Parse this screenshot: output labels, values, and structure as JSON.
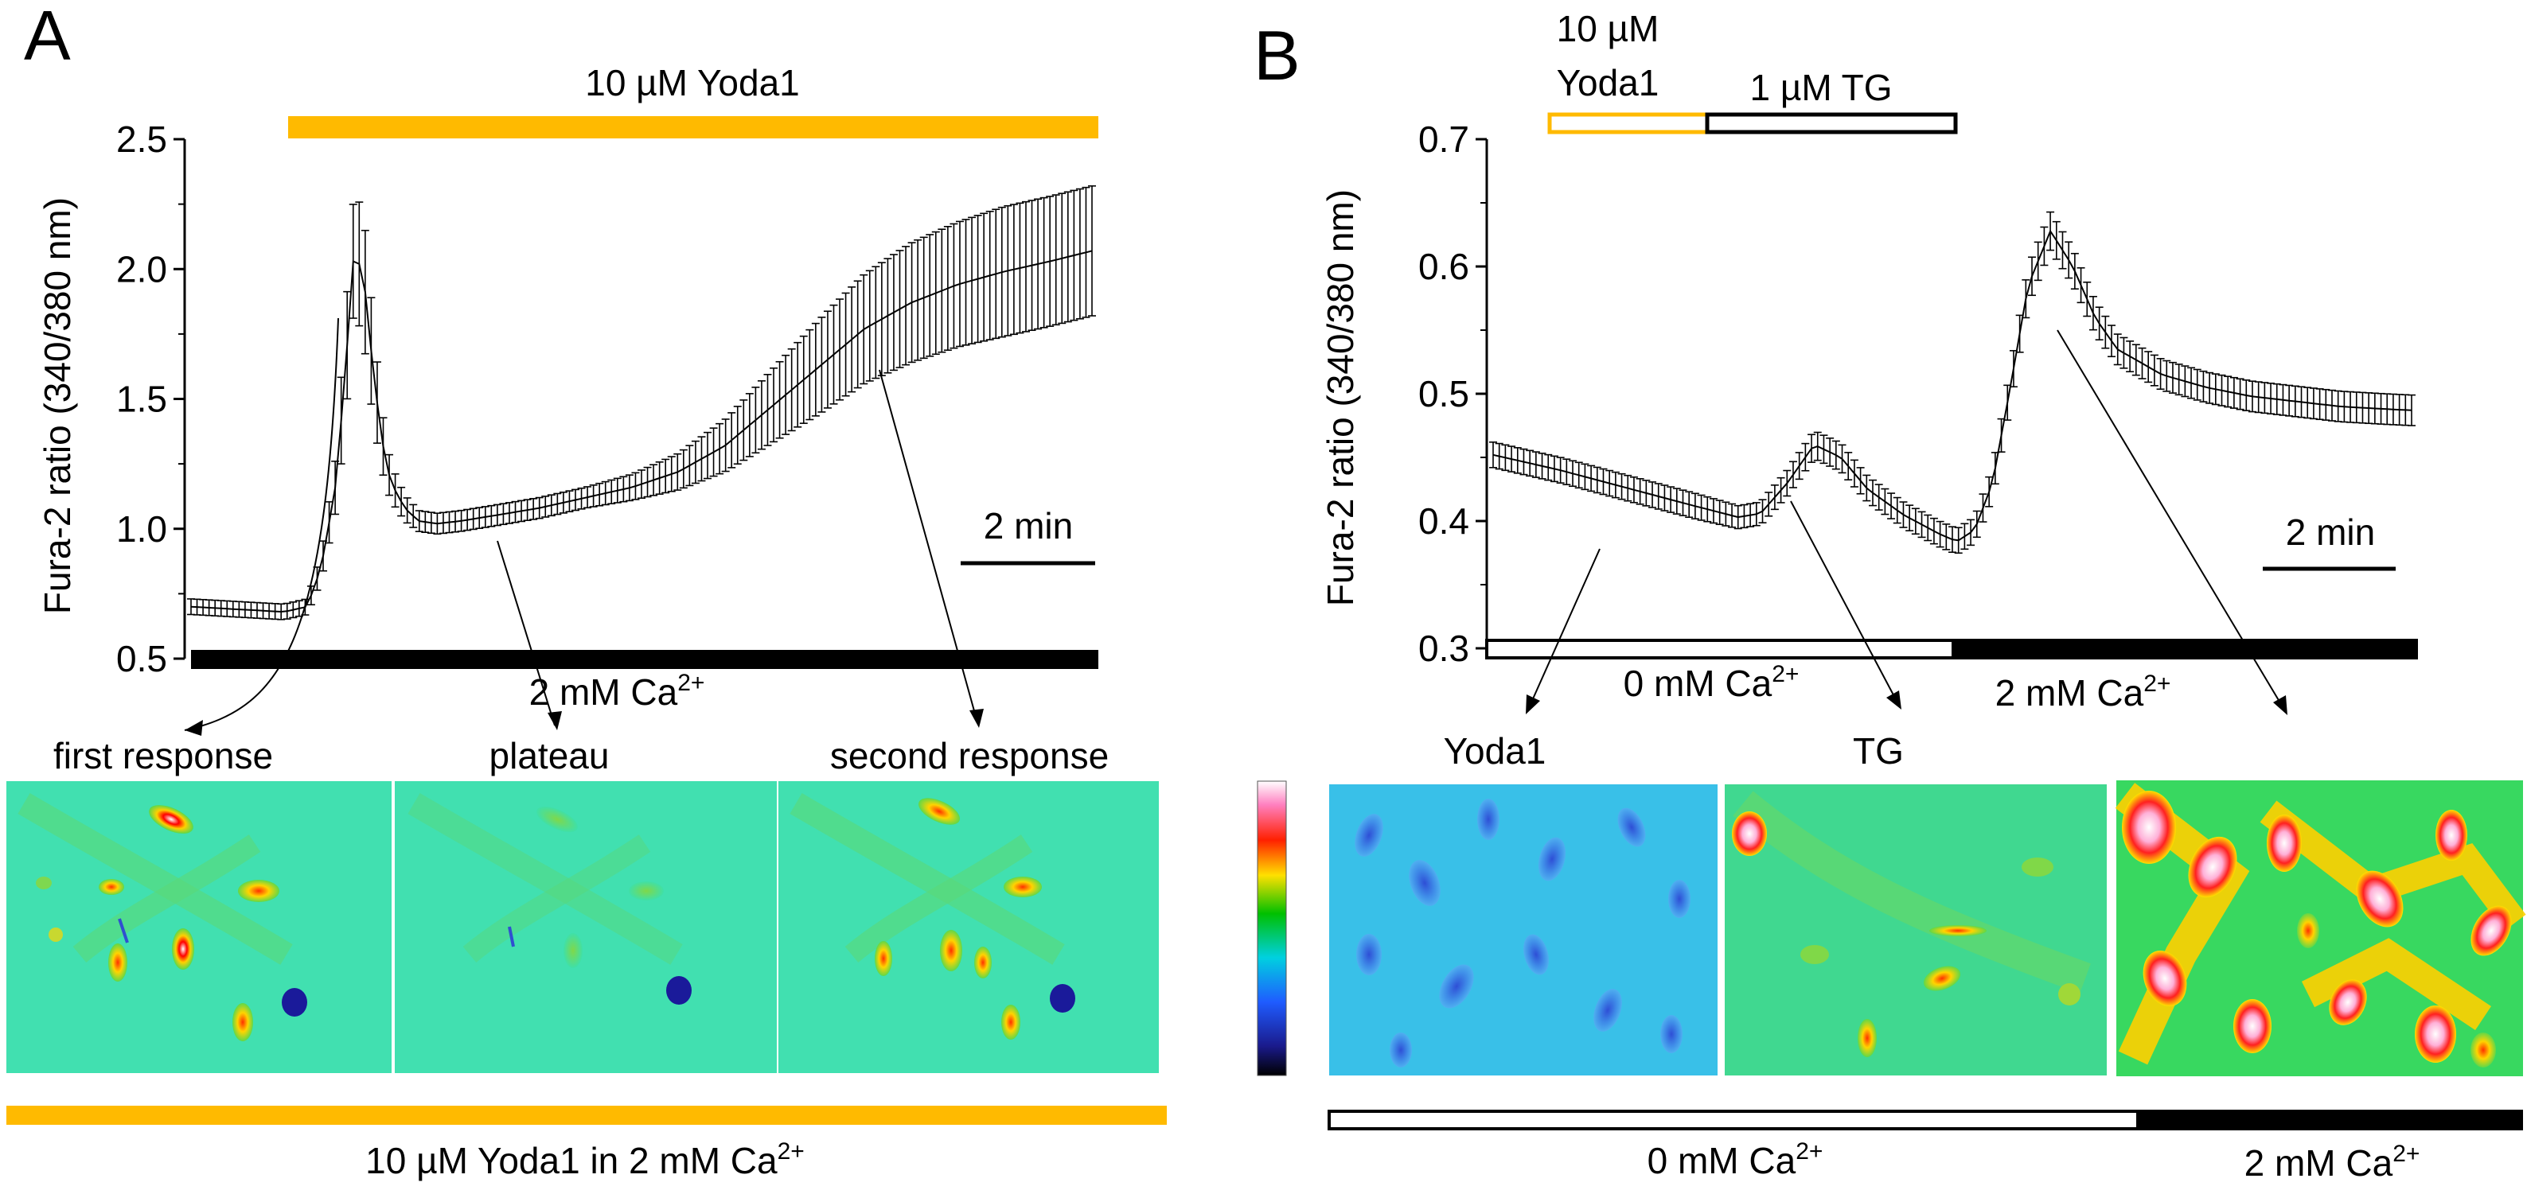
{
  "colors": {
    "yoda": "#FFBA00",
    "black": "#000000",
    "white": "#FFFFFF"
  },
  "panel_a": {
    "letter": "A",
    "top_bar_label": "10 µM Yoda1",
    "ca_bar_label_prefix": "2 mM Ca",
    "ca_sup": "2+",
    "scale_bar_label": "2 min",
    "callouts": [
      "first response",
      "plateau",
      "second response"
    ],
    "bottom_bar_label_prefix": "10 µM Yoda1 in 2 mM Ca",
    "bottom_bar_sup": "2+"
  },
  "panel_b": {
    "letter": "B",
    "yoda_label_line1": "10 µM",
    "yoda_label_line2": "Yoda1",
    "tg_label": "1 µM TG",
    "ca0_label_prefix": "0 mM Ca",
    "ca2_label_prefix": "2 mM Ca",
    "ca_sup": "2+",
    "scale_bar_label": "2 min",
    "callouts": [
      "Yoda1",
      "TG"
    ],
    "bottom_ca0_prefix": "0 mM Ca",
    "bottom_ca2_prefix": "2 mM Ca",
    "bottom_sup": "2+"
  },
  "chart_data": [
    {
      "type": "line",
      "panel": "A",
      "title": "",
      "xlabel": "",
      "ylabel": "Fura-2 ratio (340/380 nm)",
      "ylim": [
        0.5,
        2.5
      ],
      "yticks": [
        0.5,
        1.0,
        1.5,
        2.0,
        2.5
      ],
      "ytick_labels": [
        "0.5",
        "1.0",
        "1.5",
        "2.0",
        "2.5"
      ],
      "x_unit": "min",
      "xlim": [
        0,
        19.4
      ],
      "series": [
        {
          "name": "Fura-2 ratio",
          "x": [
            0,
            1.0,
            2.0,
            2.5,
            2.8,
            3.1,
            3.3,
            3.5,
            3.7,
            3.9,
            4.1,
            4.3,
            4.6,
            4.9,
            5.3,
            5.8,
            6.5,
            7.5,
            8.5,
            9.5,
            10.5,
            11.5,
            12.5,
            13.5,
            14.5,
            15.5,
            16.5,
            17.5,
            18.5,
            19.4
          ],
          "y": [
            0.7,
            0.69,
            0.68,
            0.7,
            0.85,
            1.15,
            1.55,
            2.05,
            2.0,
            1.65,
            1.35,
            1.18,
            1.08,
            1.03,
            1.02,
            1.03,
            1.05,
            1.08,
            1.12,
            1.16,
            1.22,
            1.32,
            1.47,
            1.62,
            1.77,
            1.87,
            1.94,
            1.99,
            2.03,
            2.07
          ],
          "err": [
            0.03,
            0.03,
            0.03,
            0.03,
            0.05,
            0.1,
            0.2,
            0.22,
            0.25,
            0.2,
            0.12,
            0.07,
            0.05,
            0.04,
            0.04,
            0.04,
            0.04,
            0.04,
            0.04,
            0.05,
            0.07,
            0.1,
            0.14,
            0.18,
            0.21,
            0.23,
            0.24,
            0.25,
            0.25,
            0.25
          ]
        }
      ],
      "bars": [
        {
          "label": "10 µM Yoda1",
          "x_start": 2.2,
          "x_end": 19.4,
          "color": "#FFBA00"
        },
        {
          "label": "2 mM Ca2+",
          "x_start": 0,
          "x_end": 19.4,
          "color": "#000000"
        }
      ],
      "scale_bar_min": 2
    },
    {
      "type": "line",
      "panel": "B",
      "title": "",
      "xlabel": "",
      "ylabel": "Fura-2 ratio (340/380 nm)",
      "ylim": [
        0.3,
        0.7
      ],
      "yticks": [
        0.3,
        0.4,
        0.5,
        0.6,
        0.7
      ],
      "ytick_labels": [
        "0.3",
        "0.4",
        "0.5",
        "0.6",
        "0.7"
      ],
      "x_unit": "min",
      "xlim": [
        0,
        20.6
      ],
      "series": [
        {
          "name": "Fura-2 ratio",
          "x": [
            0,
            1.5,
            3.0,
            4.5,
            5.5,
            6.0,
            6.6,
            7.2,
            7.8,
            8.4,
            9.2,
            10.0,
            10.4,
            10.8,
            11.2,
            11.6,
            12.0,
            12.5,
            13.0,
            13.5,
            14.0,
            15.0,
            16.0,
            17.0,
            18.0,
            19.0,
            20.0,
            20.6
          ],
          "y": [
            0.452,
            0.44,
            0.426,
            0.412,
            0.403,
            0.406,
            0.43,
            0.46,
            0.45,
            0.425,
            0.405,
            0.39,
            0.384,
            0.393,
            0.43,
            0.505,
            0.585,
            0.628,
            0.6,
            0.56,
            0.535,
            0.515,
            0.505,
            0.498,
            0.494,
            0.49,
            0.488,
            0.487
          ],
          "err": [
            0.01,
            0.01,
            0.01,
            0.01,
            0.009,
            0.009,
            0.01,
            0.011,
            0.011,
            0.01,
            0.01,
            0.01,
            0.01,
            0.01,
            0.012,
            0.014,
            0.015,
            0.015,
            0.014,
            0.013,
            0.012,
            0.012,
            0.012,
            0.012,
            0.012,
            0.012,
            0.012,
            0.012
          ]
        }
      ],
      "bars": [
        {
          "label": "10 µM Yoda1",
          "x_start": 1.5,
          "x_end": 5.0,
          "color": "#FFBA00"
        },
        {
          "label": "1 µM TG",
          "x_start": 5.0,
          "x_end": 10.5,
          "color": "#000000"
        },
        {
          "label": "0 mM Ca2+",
          "x_start": 0,
          "x_end": 10.3,
          "color": "#FFFFFF"
        },
        {
          "label": "2 mM Ca2+",
          "x_start": 10.3,
          "x_end": 20.6,
          "color": "#000000"
        }
      ],
      "scale_bar_min": 2
    }
  ]
}
